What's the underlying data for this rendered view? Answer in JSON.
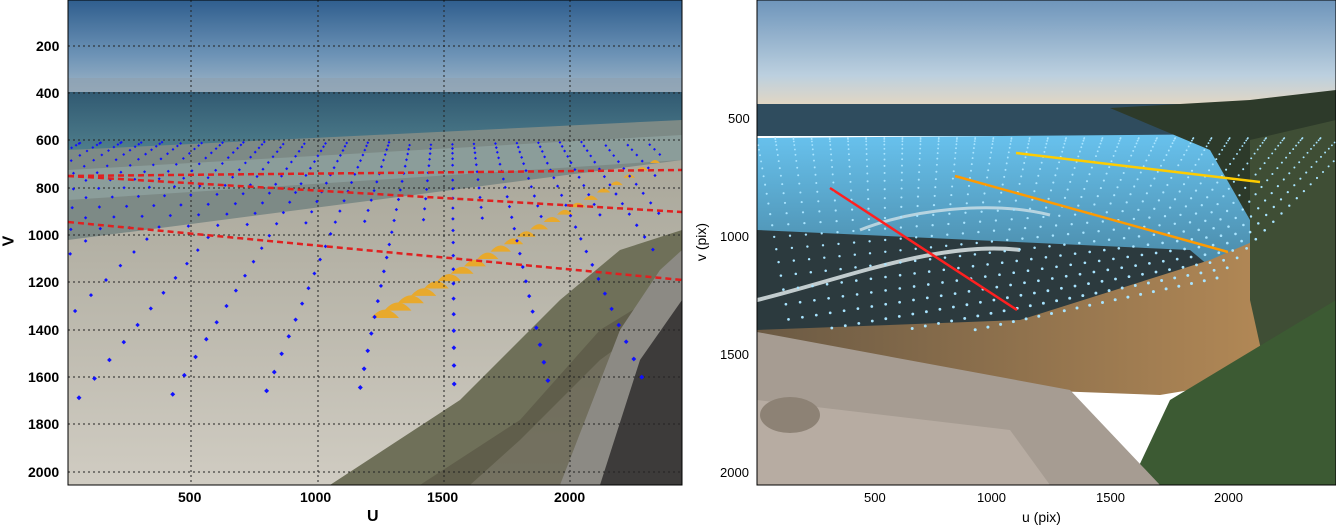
{
  "left_plot": {
    "xlabel": "U",
    "ylabel": "V",
    "xticks": [
      "500",
      "1000",
      "1500",
      "2000"
    ],
    "yticks": [
      "200",
      "400",
      "600",
      "800",
      "1000",
      "1200",
      "1400",
      "1600",
      "1800",
      "2000"
    ],
    "grid": "dotted",
    "point_color": "#1010ff",
    "line_color": "#e02020"
  },
  "right_plot": {
    "xlabel": "u (pix)",
    "ylabel": "v (pix)",
    "xticks": [
      "500",
      "1000",
      "1500",
      "2000"
    ],
    "yticks": [
      "500",
      "1000",
      "1500",
      "2000"
    ],
    "point_color": "#a8e4ff",
    "line_colors": [
      "#ff2020",
      "#ff9a00",
      "#ffcc00"
    ]
  }
}
